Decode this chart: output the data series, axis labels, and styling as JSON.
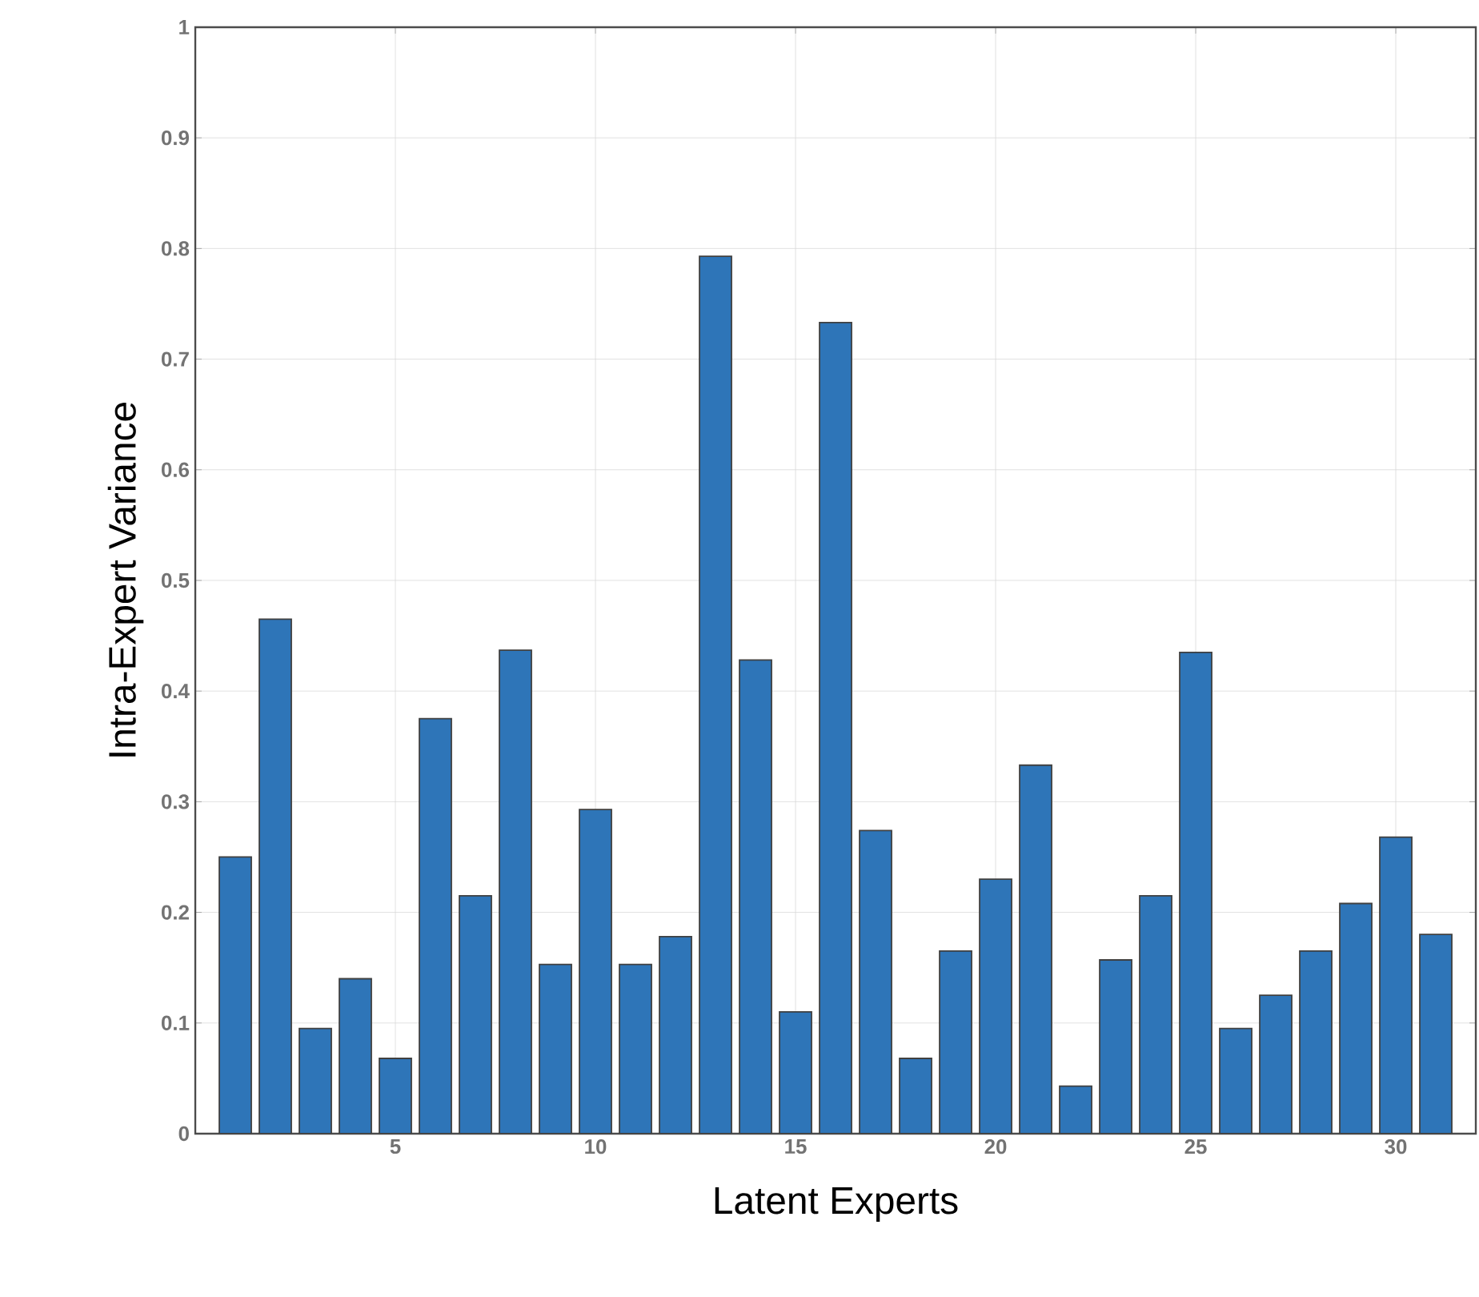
{
  "chart_data": {
    "type": "bar",
    "xlabel": "Latent Experts",
    "ylabel": "Intra-Expert Variance",
    "x": [
      1,
      2,
      3,
      4,
      5,
      6,
      7,
      8,
      9,
      10,
      11,
      12,
      13,
      14,
      15,
      16,
      17,
      18,
      19,
      20,
      21,
      22,
      23,
      24,
      25,
      26,
      27,
      28,
      29,
      30,
      31
    ],
    "values": [
      0.25,
      0.465,
      0.095,
      0.14,
      0.068,
      0.375,
      0.215,
      0.437,
      0.153,
      0.293,
      0.153,
      0.178,
      0.793,
      0.428,
      0.11,
      0.733,
      0.274,
      0.068,
      0.165,
      0.23,
      0.333,
      0.043,
      0.157,
      0.215,
      0.435,
      0.095,
      0.125,
      0.165,
      0.208,
      0.268,
      0.18
    ],
    "color": "#2e75b8",
    "xlim": [
      0,
      32
    ],
    "xticks": [
      5,
      10,
      15,
      20,
      25,
      30
    ],
    "ylim": [
      0,
      1
    ],
    "yticks": [
      0,
      0.1,
      0.2,
      0.3,
      0.4,
      0.5,
      0.6,
      0.7,
      0.8,
      0.9,
      1
    ],
    "grid": true
  }
}
